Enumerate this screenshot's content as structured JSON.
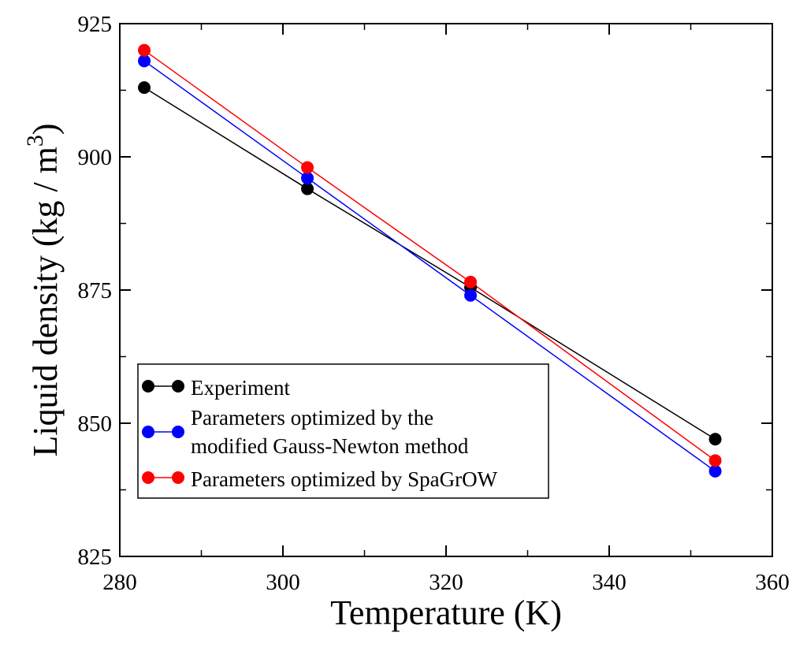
{
  "chart_data": {
    "type": "line",
    "title": "",
    "xlabel": "Temperature (K)",
    "ylabel": "Liquid density (kg / m",
    "ylabel_superscript": "3",
    "ylabel_close": ")",
    "xlim": [
      280,
      360
    ],
    "ylim": [
      825,
      925
    ],
    "xticks": [
      280,
      300,
      320,
      340,
      360
    ],
    "yticks": [
      825,
      850,
      875,
      900,
      925
    ],
    "x": [
      283,
      303,
      323,
      353
    ],
    "series": [
      {
        "name": "Experiment",
        "color": "#000000",
        "values": [
          913,
          894,
          875.5,
          847
        ]
      },
      {
        "name": "Parameters optimized by the modified Gauss-Newton method",
        "color": "#0000ff",
        "values": [
          918,
          896,
          874,
          841
        ]
      },
      {
        "name": "Parameters optimized by SpaGrOW",
        "color": "#ff0000",
        "values": [
          920,
          898,
          876.5,
          843
        ]
      }
    ],
    "legend": {
      "position": "lower-left",
      "entries": [
        {
          "lines": [
            "Experiment"
          ]
        },
        {
          "lines": [
            "Parameters optimized by the",
            "modified Gauss-Newton method"
          ]
        },
        {
          "lines": [
            "Parameters optimized by SpaGrOW"
          ]
        }
      ]
    },
    "grid": false
  }
}
